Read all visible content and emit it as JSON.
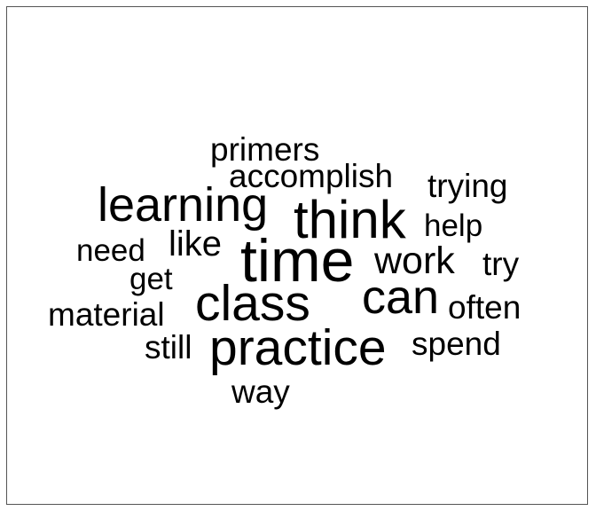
{
  "word_cloud": {
    "words": [
      {
        "text": "primers"
      },
      {
        "text": "accomplish"
      },
      {
        "text": "trying"
      },
      {
        "text": "learning"
      },
      {
        "text": "think"
      },
      {
        "text": "help"
      },
      {
        "text": "need"
      },
      {
        "text": "like"
      },
      {
        "text": "time"
      },
      {
        "text": "work"
      },
      {
        "text": "try"
      },
      {
        "text": "get"
      },
      {
        "text": "class"
      },
      {
        "text": "can"
      },
      {
        "text": "often"
      },
      {
        "text": "material"
      },
      {
        "text": "still"
      },
      {
        "text": "practice"
      },
      {
        "text": "spend"
      },
      {
        "text": "way"
      }
    ],
    "text_color": "#000000",
    "background_color": "#ffffff",
    "border_color": "#555555"
  }
}
